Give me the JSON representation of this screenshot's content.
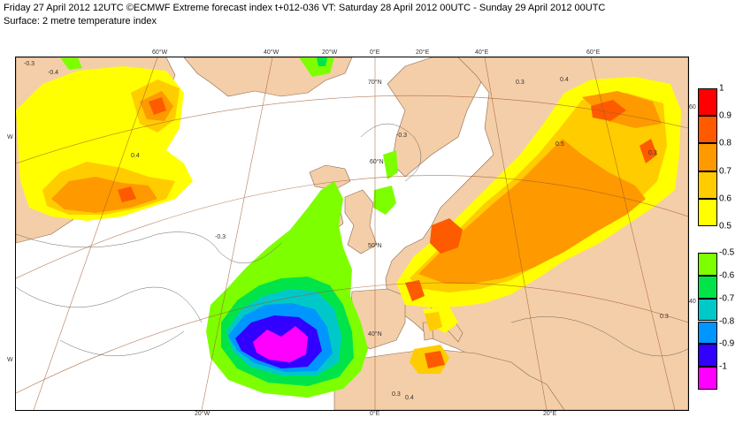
{
  "header": {
    "title": "Friday 27 April 2012 12UTC ©ECMWF Extreme forecast index t+012-036 VT: Saturday 28 April 2012 00UTC - Sunday 29 April 2012 00UTC",
    "subtitle": "Surface: 2 metre temperature index"
  },
  "map": {
    "lon_labels_top": [
      "60°W",
      "40°W",
      "20°W",
      "0°E",
      "20°E",
      "40°E",
      "60°E"
    ],
    "lon_labels_bottom": [
      "20°W",
      "0°E",
      "20°E"
    ],
    "lat_labels": [
      "70°N",
      "60°N",
      "50°N",
      "40°N"
    ],
    "edge_labels": {
      "left_a": "W",
      "left_b": "W",
      "right_a": "60",
      "right_b": "40"
    },
    "contour_labels": [
      "-0.3",
      "-0.4",
      "0.3",
      "0.4",
      "0.5",
      "0.6"
    ],
    "colors": {
      "land": "#f4cea8",
      "sea": "#ffffff"
    }
  },
  "legend_warm": {
    "colors": [
      "#fe0000",
      "#fe5a00",
      "#fe9900",
      "#ffcc00",
      "#ffff00"
    ],
    "labels": [
      "1",
      "0.9",
      "0.8",
      "0.7",
      "0.6",
      "0.5"
    ]
  },
  "legend_cold": {
    "colors": [
      "#7dff00",
      "#00e44a",
      "#00c8c8",
      "#0096ff",
      "#3200ff",
      "#ff00ff"
    ],
    "labels": [
      "-0.5",
      "-0.6",
      "-0.7",
      "-0.8",
      "-0.9",
      "-1"
    ]
  }
}
